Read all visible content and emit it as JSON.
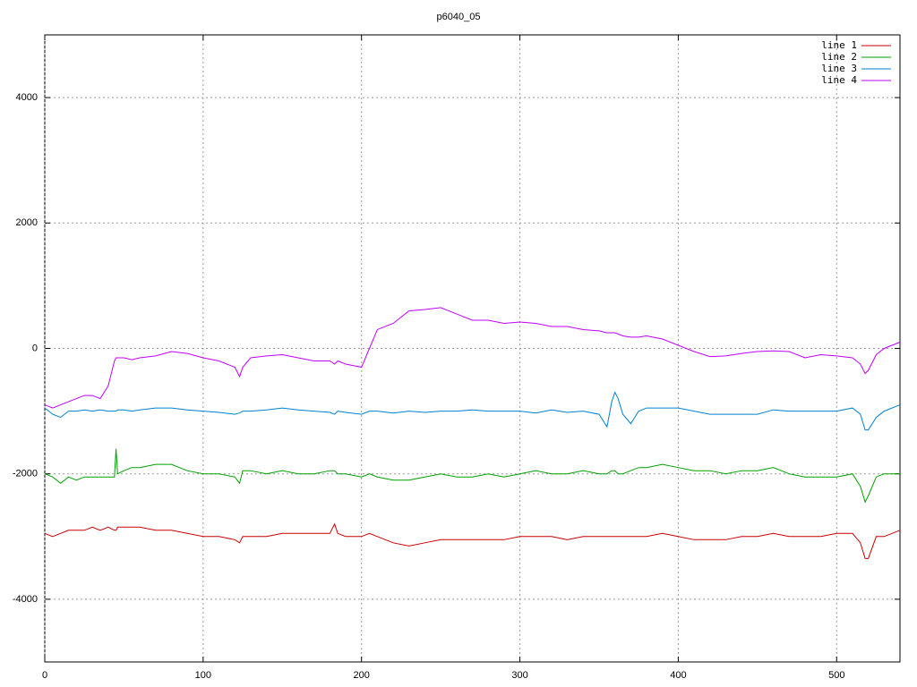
{
  "chart_data": {
    "type": "line",
    "title": "p6040_05",
    "x": [
      0,
      5,
      10,
      15,
      20,
      25,
      30,
      35,
      40,
      44,
      45,
      46,
      50,
      55,
      60,
      70,
      80,
      90,
      100,
      110,
      120,
      123,
      125,
      130,
      140,
      150,
      160,
      170,
      180,
      183,
      185,
      190,
      200,
      205,
      210,
      220,
      230,
      240,
      250,
      260,
      270,
      280,
      290,
      300,
      310,
      320,
      330,
      340,
      350,
      355,
      358,
      360,
      362,
      365,
      370,
      375,
      380,
      390,
      400,
      410,
      420,
      430,
      440,
      450,
      460,
      470,
      480,
      490,
      500,
      510,
      515,
      518,
      520,
      525,
      530,
      540
    ],
    "series": [
      {
        "name": "line 1",
        "color": "#cc0000",
        "values": [
          -2950,
          -3000,
          -2950,
          -2900,
          -2900,
          -2900,
          -2850,
          -2900,
          -2850,
          -2900,
          -2900,
          -2850,
          -2850,
          -2850,
          -2850,
          -2900,
          -2900,
          -2950,
          -3000,
          -3000,
          -3050,
          -3100,
          -3000,
          -3000,
          -3000,
          -2950,
          -2950,
          -2950,
          -2950,
          -2800,
          -2950,
          -3000,
          -3000,
          -2950,
          -3000,
          -3100,
          -3150,
          -3100,
          -3050,
          -3050,
          -3050,
          -3050,
          -3050,
          -3000,
          -3000,
          -3000,
          -3050,
          -3000,
          -3000,
          -3000,
          -3000,
          -3000,
          -3000,
          -3000,
          -3000,
          -3000,
          -3000,
          -2950,
          -3000,
          -3050,
          -3050,
          -3050,
          -3000,
          -3000,
          -2950,
          -3000,
          -3000,
          -3000,
          -2950,
          -2950,
          -3100,
          -3350,
          -3350,
          -3000,
          -3000,
          -2900
        ]
      },
      {
        "name": "line 2",
        "color": "#00a000",
        "values": [
          -2000,
          -2050,
          -2150,
          -2050,
          -2100,
          -2050,
          -2050,
          -2050,
          -2050,
          -2050,
          -1600,
          -2000,
          -1950,
          -1900,
          -1900,
          -1850,
          -1850,
          -1950,
          -2000,
          -2000,
          -2050,
          -2150,
          -1950,
          -1950,
          -2000,
          -1950,
          -2000,
          -2000,
          -1950,
          -1950,
          -2000,
          -2000,
          -2050,
          -2000,
          -2050,
          -2100,
          -2100,
          -2050,
          -2000,
          -2050,
          -2050,
          -2000,
          -2050,
          -2000,
          -1950,
          -2000,
          -2000,
          -1950,
          -2000,
          -2000,
          -1950,
          -1950,
          -2000,
          -2000,
          -1950,
          -1900,
          -1900,
          -1850,
          -1900,
          -1950,
          -1950,
          -2000,
          -1950,
          -1950,
          -1900,
          -2000,
          -2050,
          -2050,
          -2050,
          -2000,
          -2200,
          -2450,
          -2350,
          -2050,
          -2000,
          -2000
        ]
      },
      {
        "name": "line 3",
        "color": "#0080d0",
        "values": [
          -950,
          -1050,
          -1100,
          -1000,
          -1000,
          -980,
          -1000,
          -980,
          -1000,
          -1000,
          -1000,
          -980,
          -980,
          -1000,
          -980,
          -950,
          -950,
          -980,
          -1000,
          -1020,
          -1050,
          -1030,
          -1000,
          -1000,
          -980,
          -950,
          -980,
          -1000,
          -1020,
          -1050,
          -1000,
          -1020,
          -1050,
          -1000,
          -1000,
          -1030,
          -1000,
          -1020,
          -1000,
          -1000,
          -980,
          -1000,
          -1000,
          -1000,
          -1030,
          -980,
          -1020,
          -1000,
          -1050,
          -1250,
          -850,
          -700,
          -800,
          -1050,
          -1200,
          -1000,
          -950,
          -950,
          -950,
          -1000,
          -1050,
          -1050,
          -1050,
          -1050,
          -980,
          -1000,
          -1000,
          -1000,
          -1000,
          -950,
          -1050,
          -1300,
          -1300,
          -1100,
          -1000,
          -900
        ]
      },
      {
        "name": "line 4",
        "color": "#c000ff",
        "values": [
          -900,
          -950,
          -900,
          -850,
          -800,
          -750,
          -750,
          -800,
          -600,
          -200,
          -150,
          -150,
          -150,
          -180,
          -150,
          -120,
          -50,
          -80,
          -150,
          -200,
          -300,
          -450,
          -300,
          -150,
          -120,
          -100,
          -150,
          -200,
          -200,
          -250,
          -200,
          -250,
          -300,
          0,
          300,
          400,
          600,
          620,
          650,
          550,
          450,
          450,
          400,
          420,
          400,
          350,
          350,
          300,
          280,
          250,
          250,
          250,
          230,
          200,
          180,
          180,
          200,
          150,
          50,
          -50,
          -130,
          -120,
          -80,
          -50,
          -40,
          -50,
          -150,
          -100,
          -120,
          -150,
          -250,
          -400,
          -350,
          -100,
          0,
          100
        ]
      }
    ],
    "xlim": [
      0,
      540
    ],
    "xticks": [
      0,
      100,
      200,
      300,
      400,
      500
    ],
    "ylim": [
      -5000,
      5000
    ],
    "yticks": [
      -4000,
      -2000,
      0,
      2000,
      4000
    ],
    "grid": true,
    "legend": "top-right"
  }
}
